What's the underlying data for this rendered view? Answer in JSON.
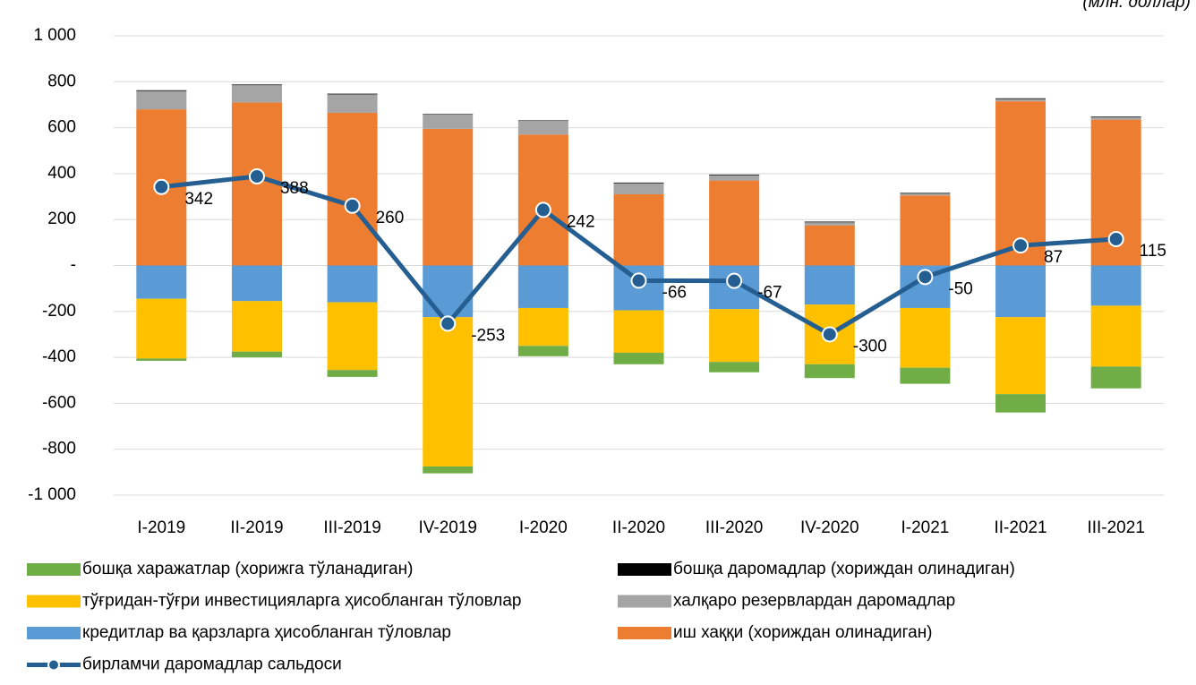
{
  "chart_data": {
    "type": "bar",
    "unit": "(млн. доллар)",
    "categories": [
      "I-2019",
      "II-2019",
      "III-2019",
      "IV-2019",
      "I-2020",
      "II-2020",
      "III-2020",
      "IV-2020",
      "I-2021",
      "II-2021",
      "III-2021"
    ],
    "series": [
      {
        "name": "бошқа харажатлар (хорижга тўланадиган)",
        "color": "#70ad47",
        "values": [
          -10,
          -25,
          -30,
          -30,
          -45,
          -50,
          -45,
          -60,
          -70,
          -80,
          -95
        ]
      },
      {
        "name": "бошқа даромадлар (хориждан олинадиган)",
        "color": "#000000",
        "values": [
          3,
          3,
          3,
          2,
          2,
          3,
          3,
          3,
          3,
          3,
          3
        ]
      },
      {
        "name": "тўғридан-тўғри инвестицияларга ҳисобланган тўловлар",
        "color": "#ffc000",
        "values": [
          -260,
          -220,
          -295,
          -650,
          -165,
          -185,
          -230,
          -260,
          -260,
          -335,
          -265
        ]
      },
      {
        "name": "халқаро резервлардан даромадлар",
        "color": "#a5a5a5",
        "values": [
          80,
          75,
          80,
          63,
          60,
          48,
          23,
          13,
          8,
          10,
          10
        ]
      },
      {
        "name": "кредитлар ва қарзларга ҳисобланган тўловлар",
        "color": "#5b9bd5",
        "values": [
          -145,
          -155,
          -160,
          -225,
          -185,
          -195,
          -190,
          -170,
          -185,
          -225,
          -175
        ]
      },
      {
        "name": "иш хаққи (хориждан олинадиган)",
        "color": "#ed7d31",
        "values": [
          680,
          710,
          665,
          595,
          570,
          310,
          370,
          175,
          305,
          715,
          635
        ]
      },
      {
        "name": "бирламчи даромадлар сальдоси",
        "type": "line",
        "color": "#255e91",
        "values": [
          342,
          388,
          260,
          -253,
          242,
          -66,
          -67,
          -300,
          -50,
          87,
          115
        ]
      }
    ],
    "ylim": [
      -1000,
      1000
    ],
    "yticks": [
      {
        "value": 1000,
        "label": "1 000"
      },
      800,
      600,
      400,
      200,
      {
        "value": 0,
        "label": "-"
      },
      -200,
      -400,
      -600,
      -800,
      {
        "value": -1000,
        "label": "-1 000"
      }
    ],
    "grid": true
  }
}
